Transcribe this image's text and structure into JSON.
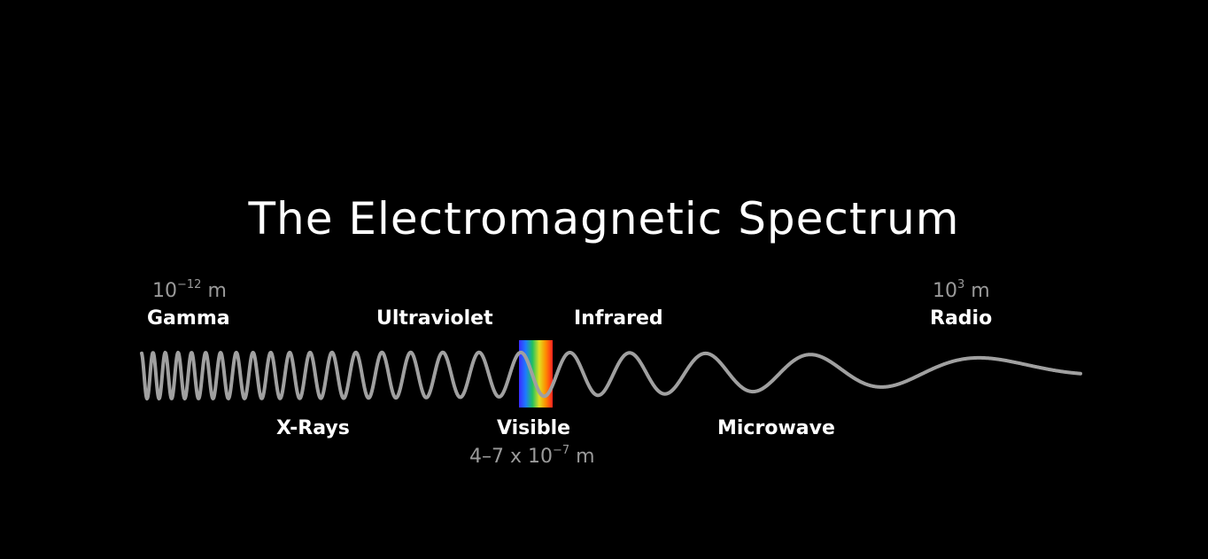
{
  "title": "The Electromagnetic Spectrum",
  "bands": {
    "gamma": "Gamma",
    "xrays": "X-Rays",
    "ultraviolet": "Ultraviolet",
    "visible": "Visible",
    "infrared": "Infrared",
    "microwave": "Microwave",
    "radio": "Radio"
  },
  "wavelengths": {
    "gamma": {
      "base": "10",
      "exp": "−12",
      "unit": "m"
    },
    "visible": {
      "prefix": "4–7 x 10",
      "exp": "−7",
      "unit": "m"
    },
    "radio": {
      "base": "10",
      "exp": "3",
      "unit": "m"
    }
  },
  "colors": {
    "background": "#000000",
    "wave": "#a0a0a0",
    "measure_text": "#9a9a9a",
    "spectrum": [
      "#3a2bff",
      "#1e7bff",
      "#20c060",
      "#e0e020",
      "#ff8a00",
      "#ff2020"
    ]
  }
}
